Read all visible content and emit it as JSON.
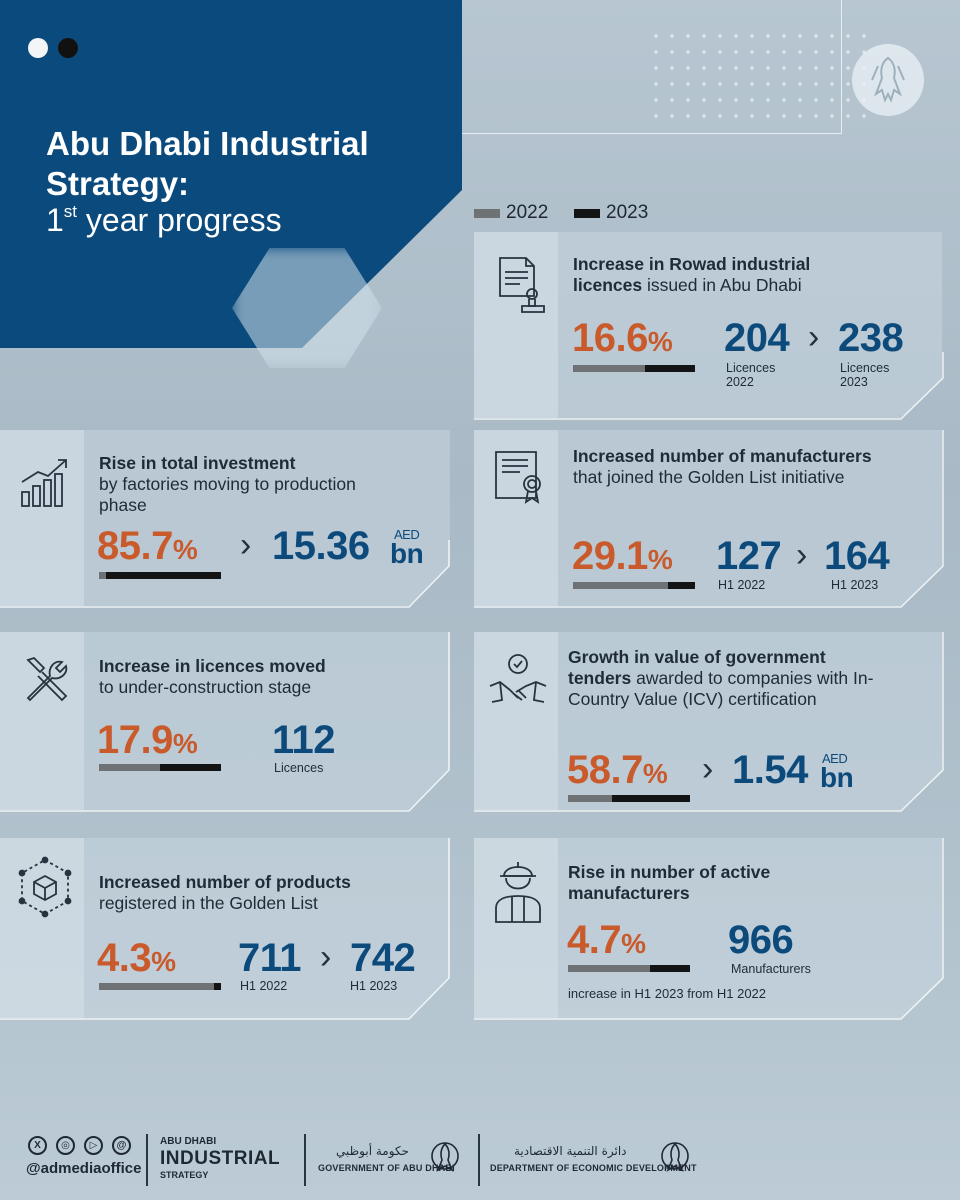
{
  "header": {
    "title": "Abu Dhabi Industrial Strategy:",
    "subtitle_ordinal": "1",
    "subtitle_suffix": "st",
    "subtitle_rest": " year progress"
  },
  "legend": [
    {
      "label": "2022",
      "color": "#6f7275"
    },
    {
      "label": "2023",
      "color": "#141414"
    }
  ],
  "colors": {
    "accent_orange": "#c95a2b",
    "accent_blue": "#0c4a7c",
    "header_blue": "#0b4a7c"
  },
  "cards": {
    "rowad": {
      "icon": "licence-stamp-icon",
      "title_bold": "Increase in Rowad industrial licences",
      "title_rest": " issued in Abu Dhabi",
      "pct": "16.6",
      "pct_sym": "%",
      "from_value": "204",
      "from_label_1": "Licences",
      "from_label_2": "2022",
      "to_value": "238",
      "to_label_1": "Licences",
      "to_label_2": "2023",
      "bar_share_2022": 0.59
    },
    "investment": {
      "icon": "growth-chart-icon",
      "title_bold": "Rise in total investment",
      "title_rest": "by factories moving to production phase",
      "pct": "85.7",
      "pct_sym": "%",
      "value": "15.36",
      "unit_top": "AED",
      "unit_bottom": "bn",
      "bar_share_2022": 0.06
    },
    "golden_list": {
      "icon": "certificate-icon",
      "title_bold": "Increased number of manufacturers",
      "title_rest": " that joined the Golden List initiative",
      "pct": "29.1",
      "pct_sym": "%",
      "from_value": "127",
      "from_label": "H1 2022",
      "to_value": "164",
      "to_label": "H1 2023",
      "bar_share_2022": 0.78
    },
    "construction": {
      "icon": "tools-icon",
      "title_bold": "Increase in licences moved",
      "title_rest": "to under-construction stage",
      "pct": "17.9",
      "pct_sym": "%",
      "value": "112",
      "value_label": "Licences",
      "bar_share_2022": 0.5
    },
    "tenders": {
      "icon": "handshake-icon",
      "title_bold": "Growth in value of government tenders",
      "title_rest": " awarded to companies with In-Country Value (ICV) certification",
      "pct": "58.7",
      "pct_sym": "%",
      "value": "1.54",
      "unit_top": "AED",
      "unit_bottom": "bn",
      "bar_share_2022": 0.36
    },
    "products": {
      "icon": "product-box-icon",
      "title_bold": "Increased number of products",
      "title_rest": "registered in the Golden List",
      "pct": "4.3",
      "pct_sym": "%",
      "from_value": "711",
      "from_label": "H1 2022",
      "to_value": "742",
      "to_label": "H1 2023",
      "bar_share_2022": 0.94
    },
    "active": {
      "icon": "worker-icon",
      "title_bold": "Rise in number of active manufacturers",
      "pct": "4.7",
      "pct_sym": "%",
      "value": "966",
      "value_label": "Manufacturers",
      "footnote": "increase in H1 2023 from H1 2022",
      "bar_share_2022": 0.67
    }
  },
  "footer": {
    "socials": [
      "X",
      "◎",
      "▷",
      "@"
    ],
    "handle": "@admediaoffice",
    "logo_top": "ABU DHABI",
    "logo_mid": "INDUSTRIAL",
    "logo_bottom": "STRATEGY",
    "gov_arabic": "حكومة أبوظبي",
    "gov_english": "GOVERNMENT OF ABU DHABI",
    "ded_arabic": "دائرة التنمية الاقتصادية",
    "ded_english": "DEPARTMENT OF ECONOMIC DEVELOPMENT"
  }
}
